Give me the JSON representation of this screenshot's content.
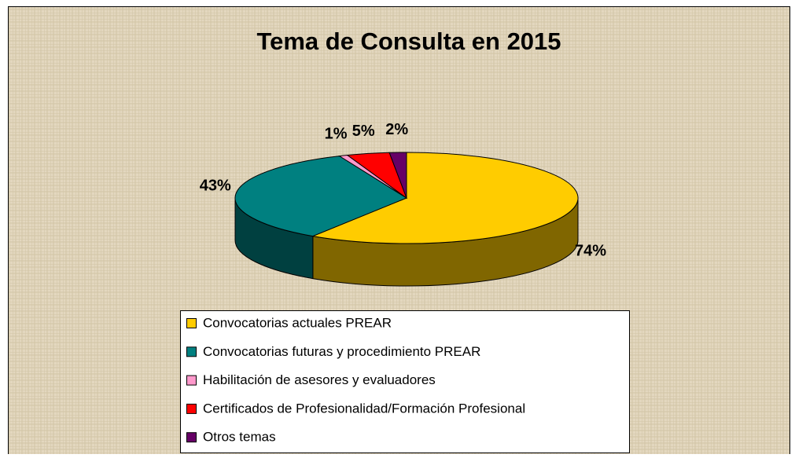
{
  "chart_data": {
    "type": "pie3d",
    "title": "Tema de Consulta en 2015",
    "categories": [
      "Convocatorias actuales PREAR",
      "Convocatorias futuras y procedimiento PREAR",
      "Habilitación de asesores y evaluadores",
      "Certificados de Profesionalidad/Formación Profesional",
      "Otros temas"
    ],
    "values": [
      74,
      43,
      1,
      5,
      2
    ],
    "value_labels": [
      "74%",
      "43%",
      "1%",
      "5%",
      "2%"
    ],
    "colors": [
      "#ffcc00",
      "#008080",
      "#ff99cc",
      "#ff0000",
      "#660066"
    ],
    "legend": "bottom"
  }
}
